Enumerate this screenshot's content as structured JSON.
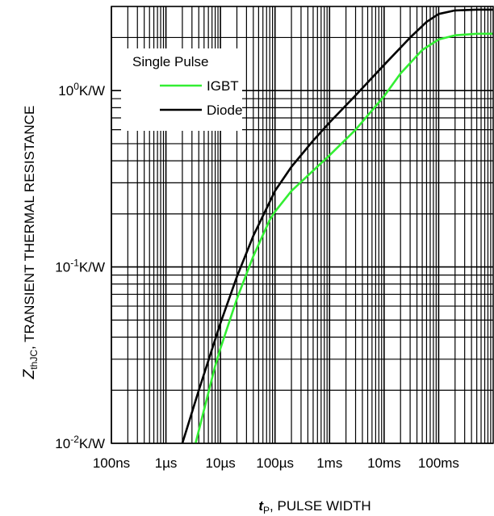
{
  "chart_data": {
    "type": "line",
    "xscale": "log",
    "yscale": "log",
    "grid": true,
    "legend_position": "top-left",
    "xlim": [
      1e-07,
      1
    ],
    "ylim": [
      0.01,
      3
    ],
    "x_ticks": [
      {
        "value": 1e-07,
        "label": "100ns"
      },
      {
        "value": 1e-06,
        "label": "1µs"
      },
      {
        "value": 1e-05,
        "label": "10µs"
      },
      {
        "value": 0.0001,
        "label": "100µs"
      },
      {
        "value": 0.001,
        "label": "1ms"
      },
      {
        "value": 0.01,
        "label": "10ms"
      },
      {
        "value": 0.1,
        "label": "100ms"
      }
    ],
    "y_ticks": [
      {
        "value": 0.01,
        "base": "10",
        "exp": "-2",
        "unit": "K/W"
      },
      {
        "value": 0.1,
        "base": "10",
        "exp": "-1",
        "unit": "K/W"
      },
      {
        "value": 1,
        "base": "10",
        "exp": "0",
        "unit": "K/W"
      }
    ],
    "xlabel": {
      "symbol": "t",
      "subscript": "P",
      "text": ", PULSE WIDTH"
    },
    "ylabel": {
      "symbol": "Z",
      "subscript": "thJC",
      "text": ", TRANSIENT THERMAL RESISTANCE"
    },
    "legend_title": "Single Pulse",
    "series": [
      {
        "name": "IGBT",
        "color": "#33ee33",
        "points": [
          [
            3.5e-06,
            0.01
          ],
          [
            5e-06,
            0.0155
          ],
          [
            8e-06,
            0.0275
          ],
          [
            1e-05,
            0.0345
          ],
          [
            2e-05,
            0.066
          ],
          [
            4e-05,
            0.115
          ],
          [
            8e-05,
            0.185
          ],
          [
            0.0001,
            0.206
          ],
          [
            0.0002,
            0.27
          ],
          [
            0.0004,
            0.33
          ],
          [
            0.001,
            0.43
          ],
          [
            0.003,
            0.6
          ],
          [
            0.01,
            0.93
          ],
          [
            0.02,
            1.25
          ],
          [
            0.05,
            1.7
          ],
          [
            0.1,
            1.95
          ],
          [
            0.2,
            2.06
          ],
          [
            0.5,
            2.1
          ],
          [
            1,
            2.1
          ]
        ]
      },
      {
        "name": "Diode",
        "color": "#000000",
        "points": [
          [
            2e-06,
            0.01
          ],
          [
            4e-06,
            0.02
          ],
          [
            1e-05,
            0.048
          ],
          [
            2e-05,
            0.088
          ],
          [
            4e-05,
            0.15
          ],
          [
            0.0001,
            0.27
          ],
          [
            0.0002,
            0.37
          ],
          [
            0.0005,
            0.52
          ],
          [
            0.001,
            0.66
          ],
          [
            0.003,
            0.94
          ],
          [
            0.01,
            1.4
          ],
          [
            0.03,
            2.0
          ],
          [
            0.06,
            2.45
          ],
          [
            0.1,
            2.72
          ],
          [
            0.2,
            2.85
          ],
          [
            0.5,
            2.88
          ],
          [
            1,
            2.88
          ]
        ]
      }
    ]
  }
}
